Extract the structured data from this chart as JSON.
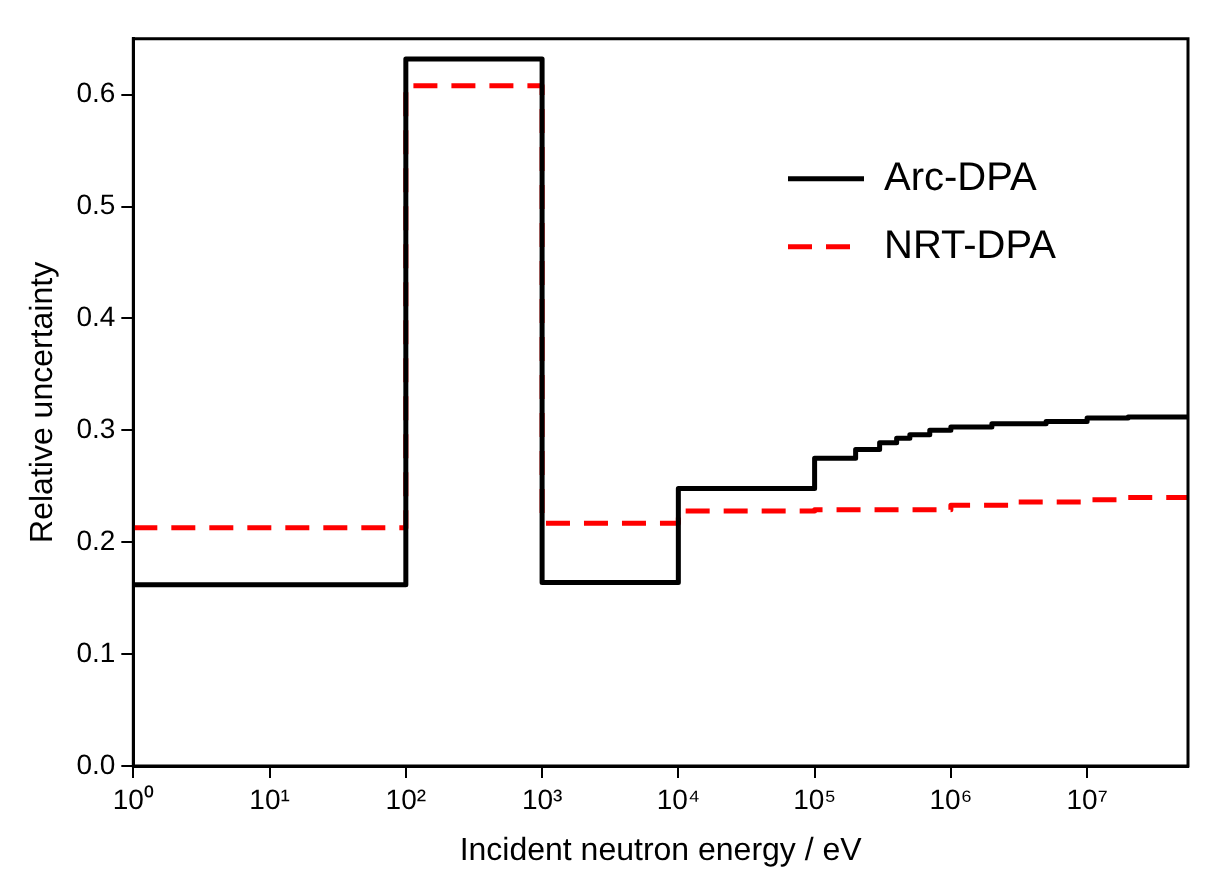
{
  "chart_data": {
    "type": "step",
    "xlabel": "Incident neutron energy / eV",
    "ylabel": "Relative uncertainty",
    "log": "x",
    "xlim": [
      1,
      55000000
    ],
    "ylim": [
      0,
      0.65
    ],
    "xticks": [
      {
        "value": 1,
        "label": "10⁰"
      },
      {
        "value": 10,
        "label": "10¹"
      },
      {
        "value": 100,
        "label": "10²"
      },
      {
        "value": 1000,
        "label": "10³"
      },
      {
        "value": 10000,
        "label": "10⁴"
      },
      {
        "value": 100000,
        "label": "10⁵"
      },
      {
        "value": 1000000,
        "label": "10⁶"
      },
      {
        "value": 10000000,
        "label": "10⁷"
      }
    ],
    "yticks": [
      {
        "value": 0,
        "label": "0.0"
      },
      {
        "value": 0.1,
        "label": "0.1"
      },
      {
        "value": 0.2,
        "label": "0.2"
      },
      {
        "value": 0.3,
        "label": "0.3"
      },
      {
        "value": 0.4,
        "label": "0.4"
      },
      {
        "value": 0.5,
        "label": "0.5"
      },
      {
        "value": 0.6,
        "label": "0.6"
      }
    ],
    "grid": false,
    "legend": "top right",
    "series": [
      {
        "name": "Arc-DPA",
        "color": "#000000",
        "line_style": "solid",
        "x": [
          1,
          100,
          1000,
          10000,
          100000,
          200000,
          300000,
          400000,
          500000,
          700000,
          1000000,
          2000000,
          5000000,
          10000000,
          20000000,
          55000000
        ],
        "values": [
          0.162,
          0.632,
          0.164,
          0.248,
          0.275,
          0.283,
          0.289,
          0.293,
          0.296,
          0.3,
          0.303,
          0.306,
          0.308,
          0.311,
          0.312,
          0.312
        ]
      },
      {
        "name": "NRT-DPA",
        "color": "#ff0000",
        "line_style": "dashed",
        "x": [
          1,
          100,
          1000,
          10000,
          100000,
          1000000,
          3000000,
          10000000,
          20000000,
          55000000
        ],
        "values": [
          0.213,
          0.608,
          0.217,
          0.228,
          0.229,
          0.233,
          0.236,
          0.238,
          0.24,
          0.24
        ]
      }
    ]
  }
}
